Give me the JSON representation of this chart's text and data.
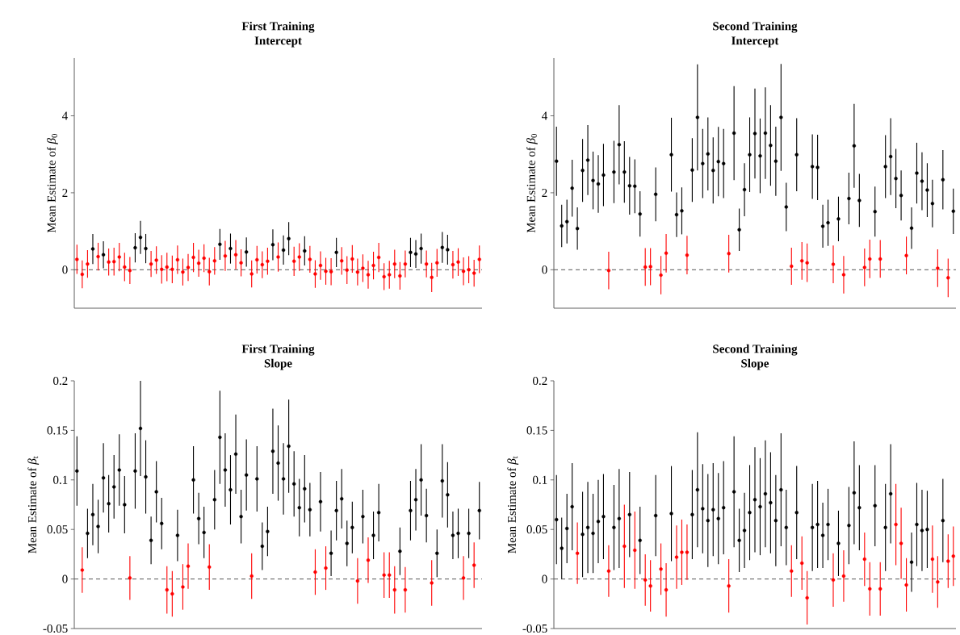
{
  "chart_data": [
    {
      "type": "scatter",
      "title": "First Training",
      "subtitle": "Intercept",
      "ylabel": "Mean Estimate of *β*$_{0}$",
      "categories": [
        null,
        null,
        null,
        null,
        null,
        null,
        null,
        null,
        null,
        null,
        null,
        null,
        null,
        null,
        null,
        null,
        null,
        null,
        null,
        null,
        null,
        null,
        null,
        null,
        null,
        null,
        null,
        null,
        null,
        null,
        null,
        null,
        null,
        null,
        null,
        null,
        null,
        null,
        null,
        null,
        null,
        null,
        null,
        null,
        null,
        null,
        null,
        null,
        null,
        null,
        null,
        null,
        null,
        null,
        null,
        null,
        null,
        null,
        null,
        null,
        null,
        null,
        null,
        null,
        null,
        null,
        null,
        null,
        null,
        null,
        null,
        null,
        null,
        null,
        null,
        null,
        null
      ],
      "series": [
        {
          "values": [
            0.27,
            -0.12,
            0.15,
            0.54,
            0.34,
            0.39,
            0.2,
            0.21,
            0.33,
            0.07,
            -0.02,
            0.57,
            0.84,
            0.55,
            0.15,
            0.25,
            0.01,
            0.07,
            0.01,
            0.26,
            -0.06,
            0.06,
            0.32,
            0.17,
            0.3,
            -0.05,
            0.23,
            0.66,
            0.36,
            0.55,
            0.39,
            0.18,
            0.46,
            -0.11,
            0.26,
            0.13,
            0.22,
            0.65,
            0.33,
            0.51,
            0.81,
            0.22,
            0.33,
            0.49,
            0.27,
            -0.11,
            0.11,
            -0.04,
            -0.05,
            0.45,
            0.23,
            -0.01,
            0.28,
            -0.06,
            0.04,
            -0.13,
            0.11,
            0.32,
            -0.18,
            -0.13,
            0.15,
            -0.16,
            0.15,
            0.45,
            0.41,
            0.55,
            0.15,
            -0.2,
            0.18,
            0.58,
            0.52,
            0.13,
            0.2,
            -0.04,
            0.0,
            -0.09,
            0.27
          ],
          "errors": [
            0.38,
            0.36,
            0.36,
            0.39,
            0.36,
            0.35,
            0.35,
            0.36,
            0.37,
            0.37,
            0.35,
            0.38,
            0.43,
            0.38,
            0.34,
            0.36,
            0.37,
            0.37,
            0.36,
            0.37,
            0.35,
            0.35,
            0.38,
            0.35,
            0.36,
            0.36,
            0.36,
            0.4,
            0.39,
            0.39,
            0.38,
            0.35,
            0.38,
            0.35,
            0.36,
            0.35,
            0.35,
            0.4,
            0.38,
            0.38,
            0.43,
            0.38,
            0.36,
            0.38,
            0.35,
            0.36,
            0.37,
            0.35,
            0.35,
            0.38,
            0.36,
            0.36,
            0.36,
            0.35,
            0.36,
            0.36,
            0.36,
            0.38,
            0.35,
            0.36,
            0.37,
            0.36,
            0.35,
            0.38,
            0.36,
            0.39,
            0.35,
            0.38,
            0.36,
            0.4,
            0.39,
            0.36,
            0.36,
            0.36,
            0.35,
            0.35,
            0.36
          ],
          "colors": [
            "#ff0000",
            "#ff0000",
            "#ff0000",
            "#000000",
            "#ff0000",
            "#000000",
            "#ff0000",
            "#ff0000",
            "#ff0000",
            "#ff0000",
            "#ff0000",
            "#000000",
            "#000000",
            "#000000",
            "#ff0000",
            "#ff0000",
            "#ff0000",
            "#ff0000",
            "#ff0000",
            "#ff0000",
            "#ff0000",
            "#ff0000",
            "#ff0000",
            "#ff0000",
            "#ff0000",
            "#ff0000",
            "#ff0000",
            "#000000",
            "#ff0000",
            "#000000",
            "#ff0000",
            "#ff0000",
            "#000000",
            "#ff0000",
            "#ff0000",
            "#ff0000",
            "#ff0000",
            "#000000",
            "#ff0000",
            "#000000",
            "#000000",
            "#ff0000",
            "#ff0000",
            "#000000",
            "#ff0000",
            "#ff0000",
            "#ff0000",
            "#ff0000",
            "#ff0000",
            "#000000",
            "#ff0000",
            "#ff0000",
            "#ff0000",
            "#ff0000",
            "#ff0000",
            "#ff0000",
            "#ff0000",
            "#ff0000",
            "#ff0000",
            "#ff0000",
            "#ff0000",
            "#ff0000",
            "#ff0000",
            "#000000",
            "#000000",
            "#000000",
            "#ff0000",
            "#ff0000",
            "#ff0000",
            "#000000",
            "#000000",
            "#ff0000",
            "#ff0000",
            "#ff0000",
            "#ff0000",
            "#ff0000",
            "#ff0000"
          ]
        }
      ],
      "ylim": [
        -1,
        5.5
      ],
      "yticks": [
        0,
        2,
        4
      ],
      "ref_lines": [
        {
          "axis": "y",
          "value": 0,
          "color": "#555555",
          "line_style": "dashed"
        }
      ],
      "tick_labels": "y"
    },
    {
      "type": "scatter",
      "title": "Second Training",
      "subtitle": "Intercept",
      "ylabel": "Mean Estimate of *β*$_{0}$",
      "categories": [
        null,
        null,
        null,
        null,
        null,
        null,
        null,
        null,
        null,
        null,
        null,
        null,
        null,
        null,
        null,
        null,
        null,
        null,
        null,
        null,
        null,
        null,
        null,
        null,
        null,
        null,
        null,
        null,
        null,
        null,
        null,
        null,
        null,
        null,
        null,
        null,
        null,
        null,
        null,
        null,
        null,
        null,
        null,
        null,
        null,
        null,
        null,
        null,
        null,
        null,
        null,
        null,
        null,
        null,
        null,
        null,
        null,
        null,
        null,
        null,
        null,
        null,
        null,
        null,
        null,
        null,
        null,
        null,
        null,
        null,
        null,
        null,
        null,
        null,
        null,
        null,
        null
      ],
      "series": [
        {
          "values": [
            2.82,
            1.14,
            1.25,
            2.12,
            1.07,
            2.58,
            2.85,
            2.32,
            2.23,
            2.46,
            -0.02,
            2.54,
            3.25,
            2.54,
            2.18,
            2.17,
            1.45,
            0.07,
            0.08,
            1.96,
            -0.14,
            0.43,
            2.99,
            1.43,
            1.53,
            0.38,
            2.59,
            3.96,
            2.76,
            3.01,
            2.58,
            2.81,
            2.76,
            0.42,
            3.55,
            1.04,
            2.08,
            2.99,
            3.54,
            2.96,
            3.55,
            3.23,
            2.82,
            3.96,
            1.63,
            0.09,
            2.99,
            0.23,
            0.18,
            2.68,
            2.66,
            1.13,
            1.22,
            0.14,
            1.32,
            -0.13,
            1.85,
            3.22,
            1.8,
            0.06,
            0.28,
            1.51,
            0.28,
            2.68,
            2.94,
            2.37,
            1.93,
            0.37,
            1.08,
            2.51,
            2.3,
            2.07,
            1.72,
            0.04,
            2.34,
            -0.21,
            1.52
          ],
          "errors": [
            0.9,
            0.55,
            0.57,
            0.74,
            0.55,
            0.82,
            0.91,
            0.75,
            0.75,
            0.81,
            0.49,
            0.81,
            1.03,
            0.8,
            0.75,
            0.7,
            0.59,
            0.49,
            0.48,
            0.7,
            0.5,
            0.5,
            0.96,
            0.58,
            0.61,
            0.5,
            0.83,
            1.38,
            0.9,
            0.95,
            0.86,
            0.9,
            0.9,
            0.49,
            1.22,
            0.55,
            0.69,
            0.97,
            1.17,
            0.97,
            1.19,
            1.05,
            0.9,
            1.39,
            0.63,
            0.48,
            0.95,
            0.49,
            0.5,
            0.84,
            0.85,
            0.56,
            0.6,
            0.49,
            0.58,
            0.49,
            0.67,
            1.09,
            0.69,
            0.49,
            0.5,
            0.65,
            0.49,
            0.82,
            1.0,
            0.77,
            0.65,
            0.49,
            0.54,
            0.79,
            0.75,
            0.7,
            0.62,
            0.49,
            0.77,
            0.5,
            0.59
          ],
          "colors": [
            "#000000",
            "#000000",
            "#000000",
            "#000000",
            "#000000",
            "#000000",
            "#000000",
            "#000000",
            "#000000",
            "#000000",
            "#ff0000",
            "#000000",
            "#000000",
            "#000000",
            "#000000",
            "#000000",
            "#000000",
            "#ff0000",
            "#ff0000",
            "#000000",
            "#ff0000",
            "#ff0000",
            "#000000",
            "#000000",
            "#000000",
            "#ff0000",
            "#000000",
            "#000000",
            "#000000",
            "#000000",
            "#000000",
            "#000000",
            "#000000",
            "#ff0000",
            "#000000",
            "#000000",
            "#000000",
            "#000000",
            "#000000",
            "#000000",
            "#000000",
            "#000000",
            "#000000",
            "#000000",
            "#000000",
            "#ff0000",
            "#000000",
            "#ff0000",
            "#ff0000",
            "#000000",
            "#000000",
            "#000000",
            "#000000",
            "#ff0000",
            "#000000",
            "#ff0000",
            "#000000",
            "#000000",
            "#000000",
            "#ff0000",
            "#ff0000",
            "#000000",
            "#ff0000",
            "#000000",
            "#000000",
            "#000000",
            "#000000",
            "#ff0000",
            "#000000",
            "#000000",
            "#000000",
            "#000000",
            "#000000",
            "#ff0000",
            "#000000",
            "#ff0000",
            "#000000"
          ]
        }
      ],
      "ylim": [
        -1,
        5.5
      ],
      "yticks": [
        0,
        2,
        4
      ],
      "ref_lines": [
        {
          "axis": "y",
          "value": 0,
          "color": "#555555",
          "line_style": "dashed"
        }
      ],
      "tick_labels": "y"
    },
    {
      "type": "scatter",
      "title": "First Training",
      "subtitle": "Slope",
      "ylabel": "Mean Estimate of *β*$_{t}$",
      "categories": [
        null,
        null,
        null,
        null,
        null,
        null,
        null,
        null,
        null,
        null,
        null,
        null,
        null,
        null,
        null,
        null,
        null,
        null,
        null,
        null,
        null,
        null,
        null,
        null,
        null,
        null,
        null,
        null,
        null,
        null,
        null,
        null,
        null,
        null,
        null,
        null,
        null,
        null,
        null,
        null,
        null,
        null,
        null,
        null,
        null,
        null,
        null,
        null,
        null,
        null,
        null,
        null,
        null,
        null,
        null,
        null,
        null,
        null,
        null,
        null,
        null,
        null,
        null,
        null,
        null,
        null,
        null,
        null,
        null,
        null,
        null,
        null,
        null,
        null,
        null,
        null,
        null
      ],
      "series": [
        {
          "values": [
            0.109,
            0.009,
            0.046,
            0.065,
            0.053,
            0.102,
            0.076,
            0.093,
            0.11,
            0.075,
            0.001,
            0.109,
            0.152,
            0.103,
            0.039,
            0.088,
            0.056,
            -0.011,
            -0.015,
            0.044,
            -0.008,
            0.013,
            0.1,
            0.061,
            0.047,
            0.012,
            0.08,
            0.143,
            0.11,
            0.09,
            0.126,
            0.063,
            0.105,
            0.003,
            0.101,
            0.033,
            0.048,
            0.129,
            0.117,
            0.101,
            0.134,
            0.096,
            0.072,
            0.091,
            0.07,
            0.007,
            0.078,
            0.011,
            0.026,
            0.069,
            0.081,
            0.036,
            0.052,
            -0.002,
            0.063,
            0.019,
            0.044,
            0.067,
            0.004,
            0.004,
            -0.011,
            0.028,
            -0.011,
            0.069,
            0.08,
            0.1,
            0.064,
            -0.004,
            0.026,
            0.099,
            0.085,
            0.044,
            0.046,
            0.001,
            0.046,
            0.014,
            0.069
          ],
          "errors": [
            0.035,
            0.023,
            0.025,
            0.031,
            0.027,
            0.035,
            0.029,
            0.032,
            0.036,
            0.029,
            0.022,
            0.038,
            0.048,
            0.037,
            0.024,
            0.031,
            0.026,
            0.024,
            0.023,
            0.026,
            0.023,
            0.023,
            0.034,
            0.026,
            0.026,
            0.023,
            0.03,
            0.047,
            0.037,
            0.035,
            0.04,
            0.027,
            0.036,
            0.023,
            0.033,
            0.024,
            0.025,
            0.043,
            0.038,
            0.036,
            0.047,
            0.033,
            0.029,
            0.034,
            0.027,
            0.023,
            0.03,
            0.022,
            0.023,
            0.03,
            0.03,
            0.023,
            0.026,
            0.023,
            0.027,
            0.023,
            0.024,
            0.029,
            0.023,
            0.023,
            0.024,
            0.024,
            0.023,
            0.03,
            0.031,
            0.036,
            0.027,
            0.023,
            0.024,
            0.037,
            0.033,
            0.024,
            0.025,
            0.022,
            0.025,
            0.023,
            0.029
          ],
          "colors": [
            "#000000",
            "#ff0000",
            "#000000",
            "#000000",
            "#000000",
            "#000000",
            "#000000",
            "#000000",
            "#000000",
            "#000000",
            "#ff0000",
            "#000000",
            "#000000",
            "#000000",
            "#000000",
            "#000000",
            "#000000",
            "#ff0000",
            "#ff0000",
            "#000000",
            "#ff0000",
            "#ff0000",
            "#000000",
            "#000000",
            "#000000",
            "#ff0000",
            "#000000",
            "#000000",
            "#000000",
            "#000000",
            "#000000",
            "#000000",
            "#000000",
            "#ff0000",
            "#000000",
            "#000000",
            "#000000",
            "#000000",
            "#000000",
            "#000000",
            "#000000",
            "#000000",
            "#000000",
            "#000000",
            "#000000",
            "#ff0000",
            "#000000",
            "#ff0000",
            "#000000",
            "#000000",
            "#000000",
            "#000000",
            "#000000",
            "#ff0000",
            "#000000",
            "#ff0000",
            "#000000",
            "#000000",
            "#ff0000",
            "#ff0000",
            "#ff0000",
            "#000000",
            "#ff0000",
            "#000000",
            "#000000",
            "#000000",
            "#000000",
            "#ff0000",
            "#000000",
            "#000000",
            "#000000",
            "#000000",
            "#000000",
            "#ff0000",
            "#000000",
            "#ff0000",
            "#000000"
          ]
        }
      ],
      "ylim": [
        -0.05,
        0.2
      ],
      "yticks": [
        -0.05,
        0,
        0.05,
        0.1,
        0.15,
        0.2
      ],
      "ref_lines": [
        {
          "axis": "y",
          "value": 0,
          "color": "#555555",
          "line_style": "dashed"
        }
      ],
      "tick_labels": "y"
    },
    {
      "type": "scatter",
      "title": "Second Training",
      "subtitle": "Slope",
      "ylabel": "Mean Estimate of *β*$_{t}$",
      "categories": [
        null,
        null,
        null,
        null,
        null,
        null,
        null,
        null,
        null,
        null,
        null,
        null,
        null,
        null,
        null,
        null,
        null,
        null,
        null,
        null,
        null,
        null,
        null,
        null,
        null,
        null,
        null,
        null,
        null,
        null,
        null,
        null,
        null,
        null,
        null,
        null,
        null,
        null,
        null,
        null,
        null,
        null,
        null,
        null,
        null,
        null,
        null,
        null,
        null,
        null,
        null,
        null,
        null,
        null,
        null,
        null,
        null,
        null,
        null,
        null,
        null,
        null,
        null,
        null,
        null,
        null,
        null,
        null,
        null,
        null,
        null,
        null,
        null,
        null,
        null,
        null,
        null
      ],
      "series": [
        {
          "values": [
            0.06,
            0.031,
            0.051,
            0.073,
            0.026,
            0.045,
            0.052,
            0.046,
            0.058,
            0.063,
            0.008,
            0.052,
            0.061,
            0.033,
            0.065,
            0.029,
            0.039,
            -0.001,
            -0.007,
            0.064,
            0.01,
            -0.011,
            0.066,
            0.022,
            0.027,
            0.027,
            0.065,
            0.09,
            0.071,
            0.059,
            0.07,
            0.061,
            0.072,
            -0.007,
            0.088,
            0.039,
            0.049,
            0.067,
            0.08,
            0.073,
            0.086,
            0.077,
            0.059,
            0.09,
            0.052,
            0.008,
            0.067,
            0.016,
            -0.019,
            0.052,
            0.055,
            0.044,
            0.055,
            -0.001,
            0.036,
            0.003,
            0.054,
            0.087,
            0.072,
            0.02,
            -0.01,
            0.074,
            -0.01,
            0.052,
            0.086,
            0.055,
            0.036,
            -0.006,
            0.017,
            0.055,
            0.049,
            0.05,
            0.02,
            -0.003,
            0.059,
            0.018,
            0.023
          ],
          "errors": [
            0.045,
            0.031,
            0.035,
            0.044,
            0.031,
            0.043,
            0.046,
            0.04,
            0.042,
            0.043,
            0.026,
            0.043,
            0.05,
            0.042,
            0.043,
            0.039,
            0.034,
            0.026,
            0.026,
            0.041,
            0.026,
            0.027,
            0.048,
            0.032,
            0.033,
            0.028,
            0.045,
            0.058,
            0.045,
            0.047,
            0.047,
            0.046,
            0.047,
            0.027,
            0.056,
            0.032,
            0.038,
            0.048,
            0.053,
            0.049,
            0.054,
            0.051,
            0.046,
            0.057,
            0.038,
            0.026,
            0.047,
            0.027,
            0.027,
            0.044,
            0.044,
            0.033,
            0.036,
            0.027,
            0.033,
            0.026,
            0.039,
            0.052,
            0.043,
            0.027,
            0.027,
            0.041,
            0.027,
            0.044,
            0.05,
            0.041,
            0.036,
            0.027,
            0.03,
            0.042,
            0.041,
            0.039,
            0.034,
            0.026,
            0.042,
            0.027,
            0.03
          ],
          "colors": [
            "#000000",
            "#000000",
            "#000000",
            "#000000",
            "#ff0000",
            "#000000",
            "#000000",
            "#000000",
            "#000000",
            "#000000",
            "#ff0000",
            "#000000",
            "#000000",
            "#ff0000",
            "#000000",
            "#ff0000",
            "#000000",
            "#ff0000",
            "#ff0000",
            "#000000",
            "#ff0000",
            "#ff0000",
            "#000000",
            "#ff0000",
            "#ff0000",
            "#ff0000",
            "#000000",
            "#000000",
            "#000000",
            "#000000",
            "#000000",
            "#000000",
            "#000000",
            "#ff0000",
            "#000000",
            "#000000",
            "#000000",
            "#000000",
            "#000000",
            "#000000",
            "#000000",
            "#000000",
            "#000000",
            "#000000",
            "#000000",
            "#ff0000",
            "#000000",
            "#ff0000",
            "#ff0000",
            "#000000",
            "#000000",
            "#000000",
            "#000000",
            "#ff0000",
            "#000000",
            "#ff0000",
            "#000000",
            "#000000",
            "#000000",
            "#ff0000",
            "#ff0000",
            "#000000",
            "#ff0000",
            "#000000",
            "#000000",
            "#ff0000",
            "#ff0000",
            "#ff0000",
            "#000000",
            "#000000",
            "#000000",
            "#000000",
            "#ff0000",
            "#ff0000",
            "#000000",
            "#ff0000",
            "#ff0000"
          ]
        }
      ],
      "ylim": [
        -0.05,
        0.2
      ],
      "yticks": [
        -0.05,
        0,
        0.05,
        0.1,
        0.15,
        0.2
      ],
      "ref_lines": [
        {
          "axis": "y",
          "value": 0,
          "color": "#555555",
          "line_style": "dashed"
        }
      ],
      "tick_labels": "y"
    }
  ]
}
